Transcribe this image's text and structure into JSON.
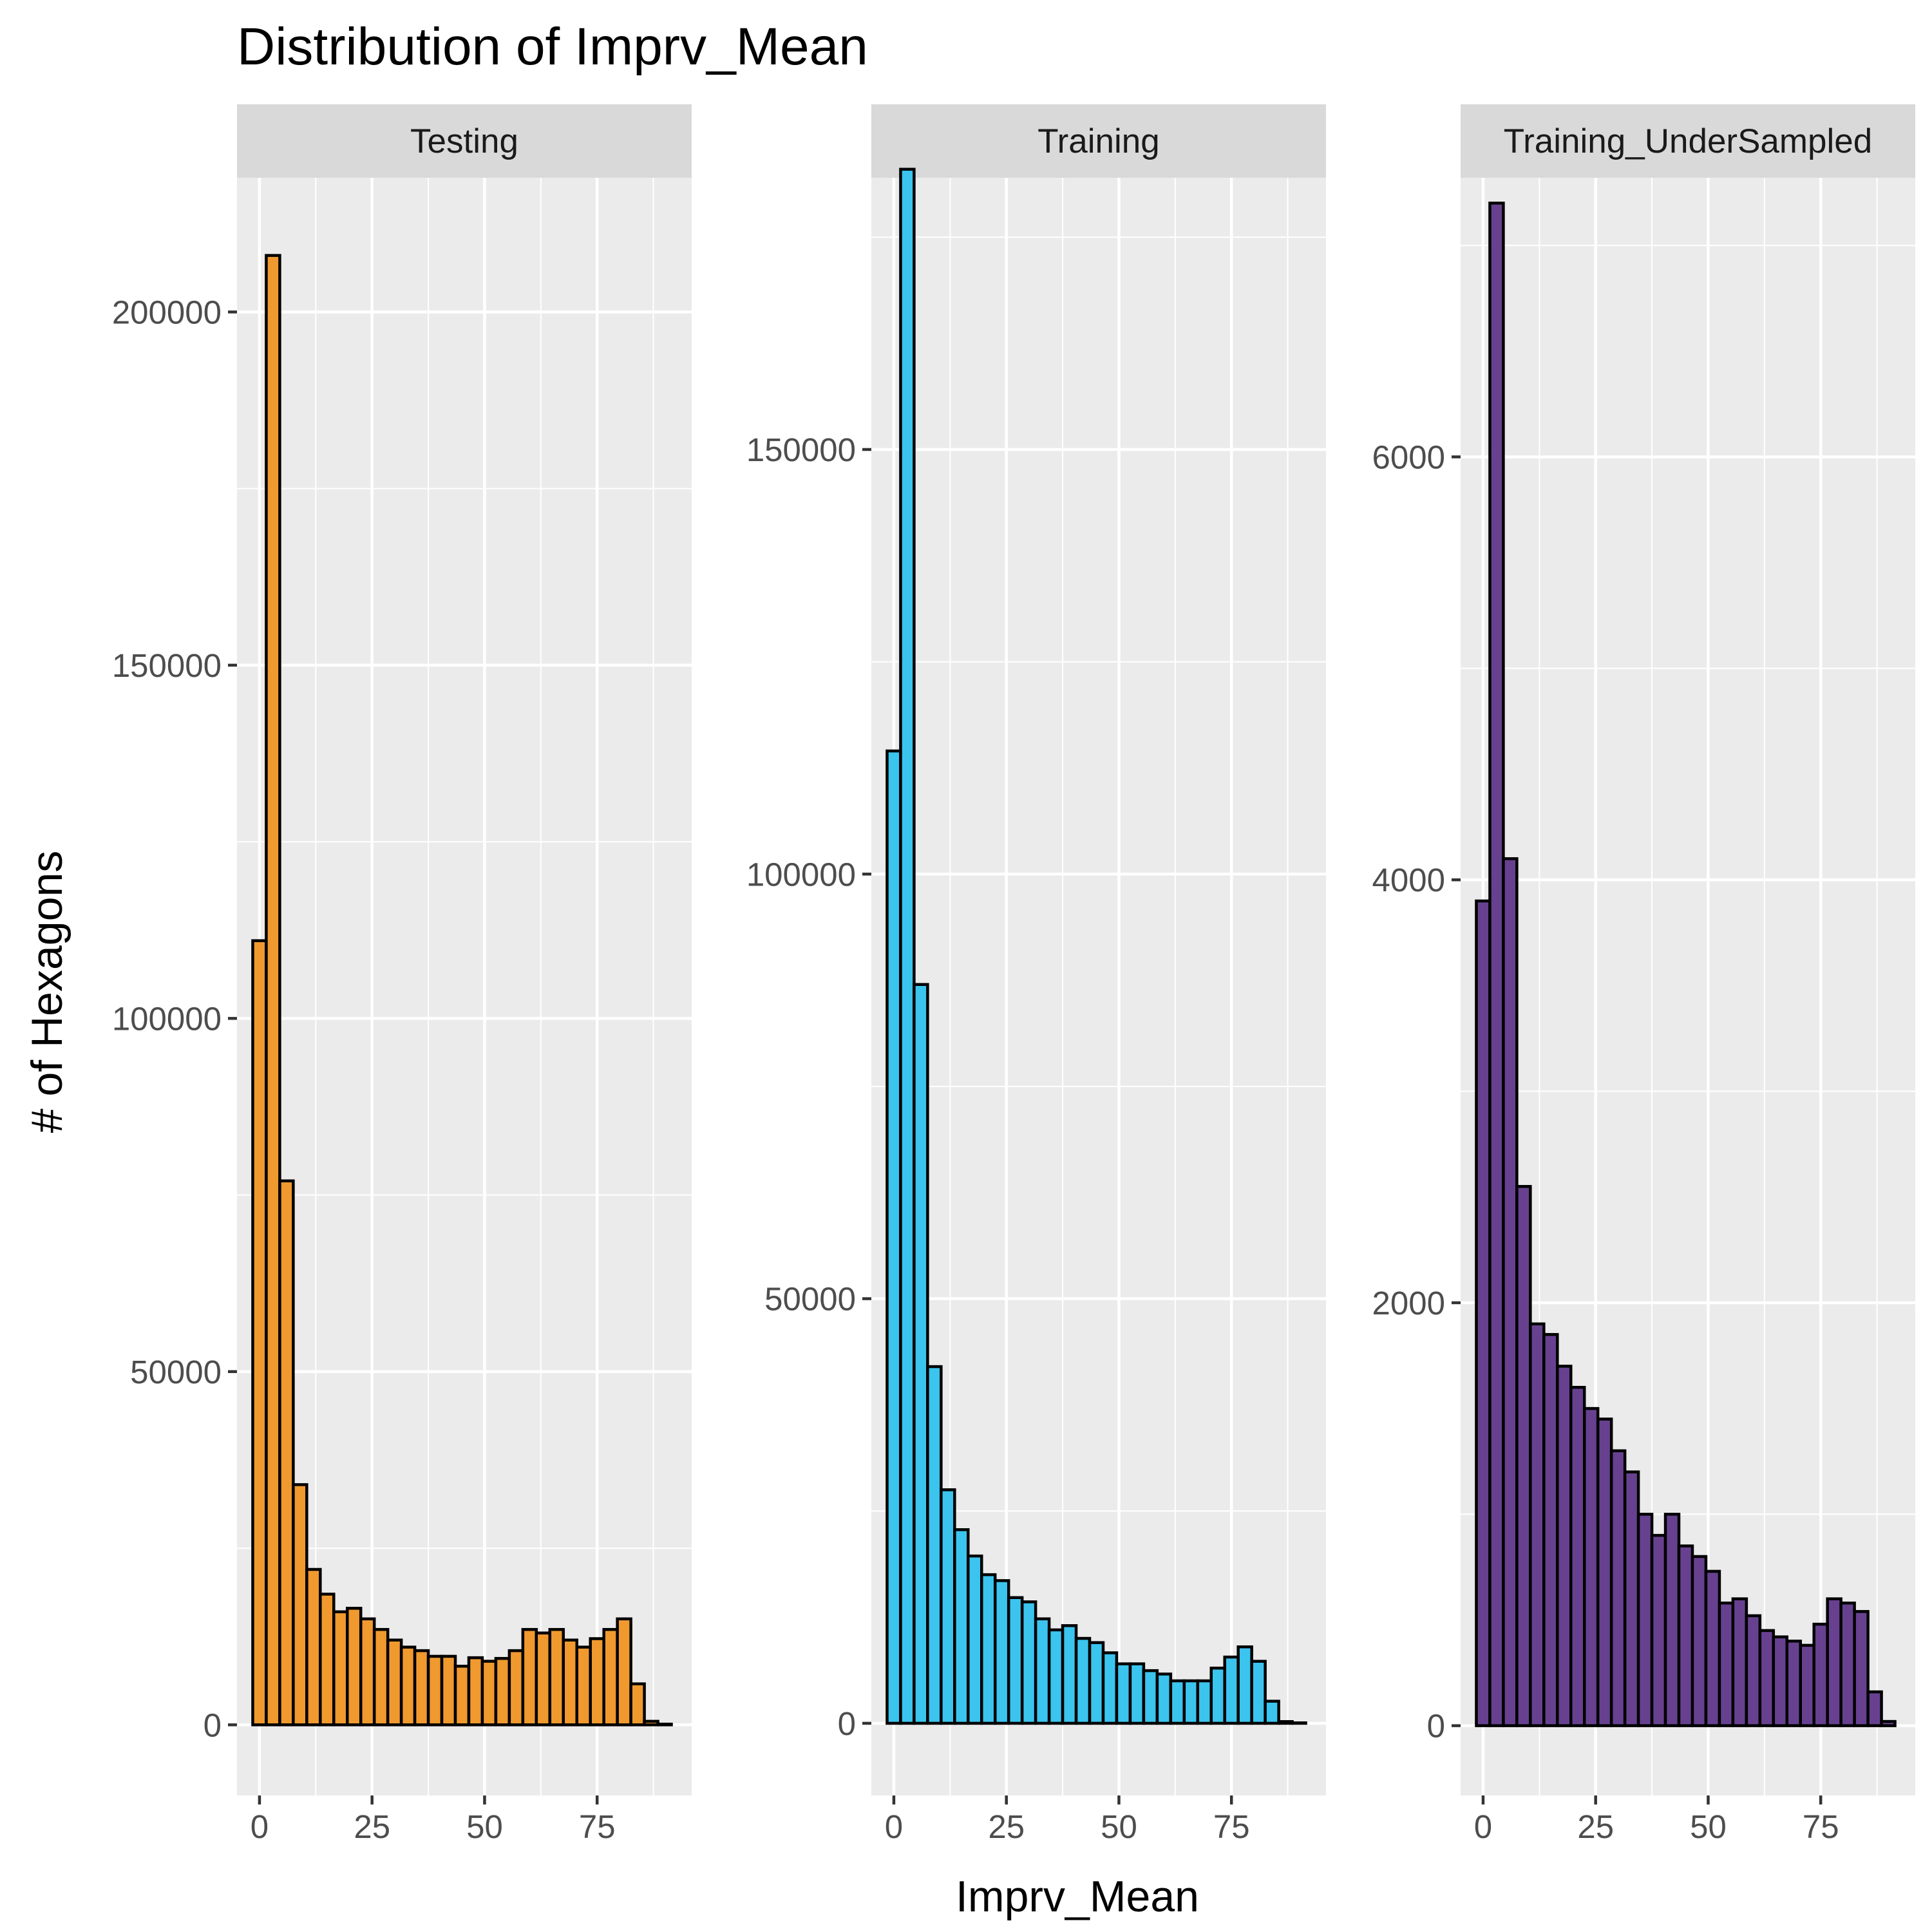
{
  "chart_data": {
    "type": "bar",
    "title": "Distribution of Imprv_Mean",
    "xlabel": "Imprv_Mean",
    "ylabel": "# of Hexagons",
    "grid": true,
    "x_bins": [
      0,
      3,
      6,
      9,
      12,
      15,
      18,
      21,
      24,
      27,
      30,
      33,
      36,
      39,
      42,
      45,
      48,
      51,
      54,
      57,
      60,
      63,
      66,
      69,
      72,
      75,
      78,
      81,
      84,
      87,
      90
    ],
    "xlim": [
      -5,
      96
    ],
    "x_ticks": [
      0,
      25,
      50,
      75
    ],
    "x_tick_labels": [
      "0",
      "25",
      "50",
      "75"
    ],
    "panels": [
      {
        "label": "Testing",
        "fill": "#F0992F",
        "ylim": [
          -10000,
          219000
        ],
        "y_ticks": [
          0,
          50000,
          100000,
          150000,
          200000
        ],
        "y_tick_labels": [
          "0",
          "50000",
          "100000",
          "150000",
          "200000"
        ],
        "values": [
          111000,
          208000,
          77000,
          34000,
          22000,
          18500,
          16000,
          16500,
          15000,
          13500,
          12000,
          11000,
          10500,
          9700,
          9700,
          8300,
          9500,
          9000,
          9400,
          10500,
          13500,
          13000,
          13500,
          12000,
          11000,
          12200,
          13500,
          15000,
          5800,
          500,
          100
        ]
      },
      {
        "label": "Training",
        "fill": "#3BC4EE",
        "ylim": [
          -8500,
          182000
        ],
        "y_ticks": [
          0,
          50000,
          100000,
          150000
        ],
        "y_tick_labels": [
          "0",
          "50000",
          "100000",
          "150000"
        ],
        "values": [
          114500,
          183000,
          87000,
          42000,
          27500,
          22800,
          19700,
          17500,
          16800,
          14800,
          14300,
          12300,
          11000,
          11500,
          10000,
          9500,
          8300,
          7000,
          7000,
          6200,
          5800,
          5000,
          5000,
          5000,
          6500,
          7800,
          9000,
          7300,
          2600,
          200,
          50
        ]
      },
      {
        "label": "Training_UnderSampled",
        "fill": "#67418F",
        "ylim": [
          -330,
          7320
        ],
        "y_ticks": [
          0,
          2000,
          4000,
          6000
        ],
        "y_tick_labels": [
          "0",
          "2000",
          "4000",
          "6000"
        ],
        "values": [
          3900,
          7200,
          4100,
          2550,
          1900,
          1850,
          1700,
          1600,
          1500,
          1450,
          1300,
          1200,
          1000,
          900,
          1000,
          850,
          800,
          730,
          580,
          600,
          520,
          450,
          420,
          400,
          380,
          480,
          600,
          580,
          540,
          160,
          20
        ]
      }
    ]
  }
}
